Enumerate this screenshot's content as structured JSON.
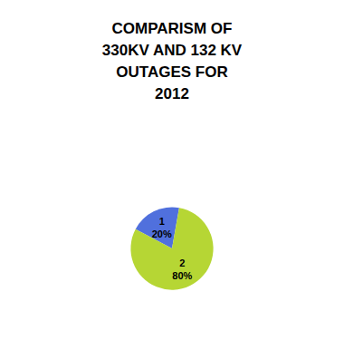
{
  "chart_data": {
    "type": "pie",
    "title": "COMPARISM OF\n330KV AND 132 KV\nOUTAGES FOR\n2012",
    "categories": [
      "1",
      "2"
    ],
    "values": [
      20,
      80
    ],
    "value_labels": [
      "20%",
      "80%"
    ],
    "data_labels": true
  }
}
